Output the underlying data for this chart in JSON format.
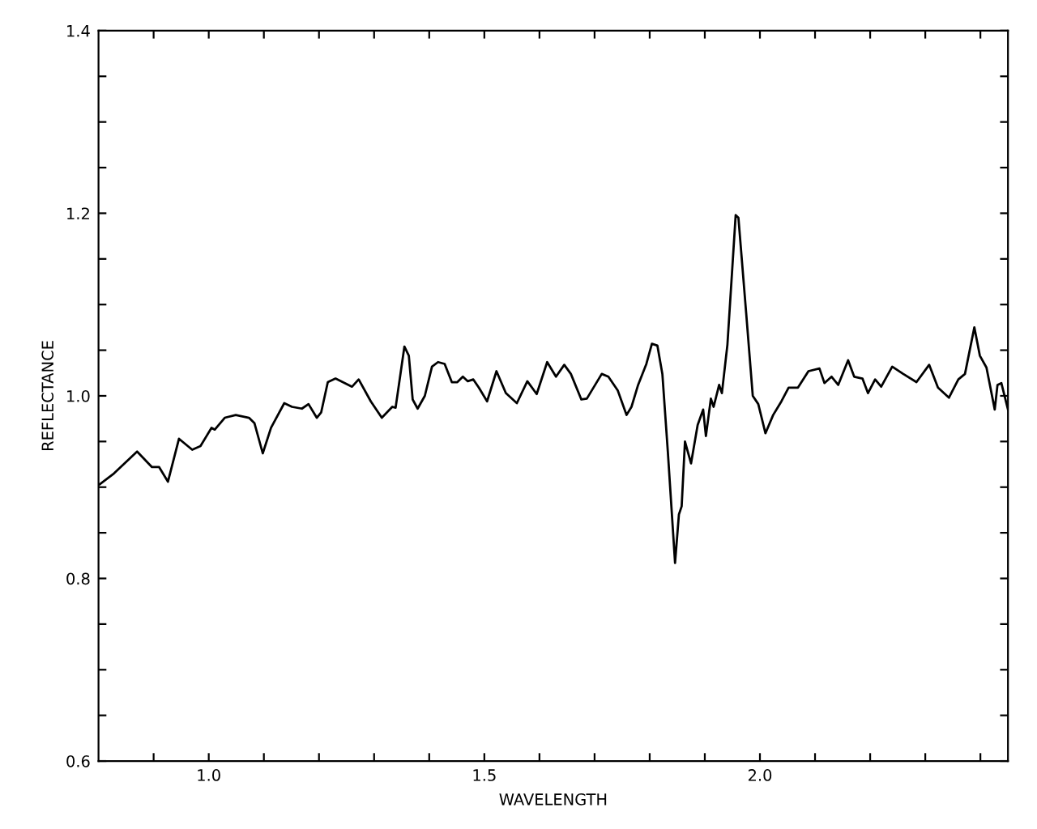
{
  "chart_data": {
    "type": "line",
    "xlabel": "WAVELENGTH",
    "ylabel": "REFLECTANCE",
    "xlim": [
      0.8,
      2.45
    ],
    "ylim": [
      0.6,
      1.4
    ],
    "xticks": [
      {
        "value": 0.9,
        "label": null
      },
      {
        "value": 1.0,
        "label": "1.0"
      },
      {
        "value": 1.1,
        "label": null
      },
      {
        "value": 1.2,
        "label": null
      },
      {
        "value": 1.3,
        "label": null
      },
      {
        "value": 1.4,
        "label": null
      },
      {
        "value": 1.5,
        "label": "1.5"
      },
      {
        "value": 1.6,
        "label": null
      },
      {
        "value": 1.7,
        "label": null
      },
      {
        "value": 1.8,
        "label": null
      },
      {
        "value": 1.9,
        "label": null
      },
      {
        "value": 2.0,
        "label": "2.0"
      },
      {
        "value": 2.1,
        "label": null
      },
      {
        "value": 2.2,
        "label": null
      },
      {
        "value": 2.3,
        "label": null
      },
      {
        "value": 2.4,
        "label": null
      }
    ],
    "yticks": [
      {
        "value": 0.6,
        "label": "0.6"
      },
      {
        "value": 0.65,
        "label": null
      },
      {
        "value": 0.7,
        "label": null
      },
      {
        "value": 0.75,
        "label": null
      },
      {
        "value": 0.8,
        "label": "0.8"
      },
      {
        "value": 0.85,
        "label": null
      },
      {
        "value": 0.9,
        "label": null
      },
      {
        "value": 0.95,
        "label": null
      },
      {
        "value": 1.0,
        "label": "1.0"
      },
      {
        "value": 1.05,
        "label": null
      },
      {
        "value": 1.1,
        "label": null
      },
      {
        "value": 1.15,
        "label": null
      },
      {
        "value": 1.2,
        "label": "1.2"
      },
      {
        "value": 1.25,
        "label": null
      },
      {
        "value": 1.3,
        "label": null
      },
      {
        "value": 1.35,
        "label": null
      },
      {
        "value": 1.4,
        "label": "1.4"
      }
    ],
    "grid": false,
    "marker": "none",
    "line_style": "solid",
    "series": [
      {
        "color": "#000000",
        "x": [
          0.802,
          0.828,
          0.87,
          0.897,
          0.91,
          0.926,
          0.946,
          0.97,
          0.985,
          1.005,
          1.011,
          1.029,
          1.049,
          1.073,
          1.083,
          1.098,
          1.113,
          1.137,
          1.151,
          1.169,
          1.181,
          1.196,
          1.204,
          1.216,
          1.23,
          1.26,
          1.272,
          1.294,
          1.314,
          1.333,
          1.339,
          1.355,
          1.363,
          1.37,
          1.379,
          1.392,
          1.405,
          1.416,
          1.428,
          1.441,
          1.451,
          1.461,
          1.47,
          1.48,
          1.49,
          1.505,
          1.522,
          1.539,
          1.559,
          1.578,
          1.595,
          1.614,
          1.63,
          1.645,
          1.657,
          1.676,
          1.686,
          1.713,
          1.725,
          1.742,
          1.758,
          1.767,
          1.779,
          1.794,
          1.804,
          1.814,
          1.823,
          1.833,
          1.846,
          1.853,
          1.858,
          1.864,
          1.875,
          1.887,
          1.897,
          1.902,
          1.911,
          1.916,
          1.926,
          1.931,
          1.941,
          1.956,
          1.961,
          1.975,
          1.987,
          1.997,
          2.01,
          2.024,
          2.039,
          2.052,
          2.069,
          2.088,
          2.108,
          2.117,
          2.13,
          2.142,
          2.16,
          2.171,
          2.186,
          2.196,
          2.209,
          2.22,
          2.24,
          2.26,
          2.284,
          2.307,
          2.323,
          2.343,
          2.36,
          2.372,
          2.389,
          2.399,
          2.411,
          2.426,
          2.431,
          2.438,
          2.45
        ],
        "values": [
          0.903,
          0.915,
          0.939,
          0.922,
          0.922,
          0.906,
          0.953,
          0.941,
          0.945,
          0.965,
          0.963,
          0.976,
          0.979,
          0.976,
          0.97,
          0.937,
          0.965,
          0.992,
          0.988,
          0.986,
          0.991,
          0.976,
          0.982,
          1.015,
          1.019,
          1.01,
          1.018,
          0.994,
          0.976,
          0.988,
          0.987,
          1.054,
          1.044,
          0.996,
          0.986,
          1.0,
          1.032,
          1.037,
          1.035,
          1.015,
          1.015,
          1.021,
          1.016,
          1.018,
          1.009,
          0.994,
          1.027,
          1.003,
          0.992,
          1.016,
          1.002,
          1.037,
          1.021,
          1.034,
          1.024,
          0.996,
          0.997,
          1.024,
          1.021,
          1.006,
          0.979,
          0.988,
          1.012,
          1.035,
          1.057,
          1.055,
          1.024,
          0.938,
          0.817,
          0.87,
          0.879,
          0.95,
          0.926,
          0.968,
          0.985,
          0.956,
          0.997,
          0.988,
          1.012,
          1.003,
          1.056,
          1.198,
          1.195,
          1.091,
          1.0,
          0.991,
          0.959,
          0.979,
          0.994,
          1.009,
          1.009,
          1.027,
          1.03,
          1.014,
          1.021,
          1.012,
          1.039,
          1.021,
          1.019,
          1.003,
          1.018,
          1.01,
          1.032,
          1.024,
          1.015,
          1.034,
          1.009,
          0.998,
          1.018,
          1.024,
          1.075,
          1.044,
          1.031,
          0.985,
          1.012,
          1.014,
          0.985
        ]
      }
    ]
  }
}
